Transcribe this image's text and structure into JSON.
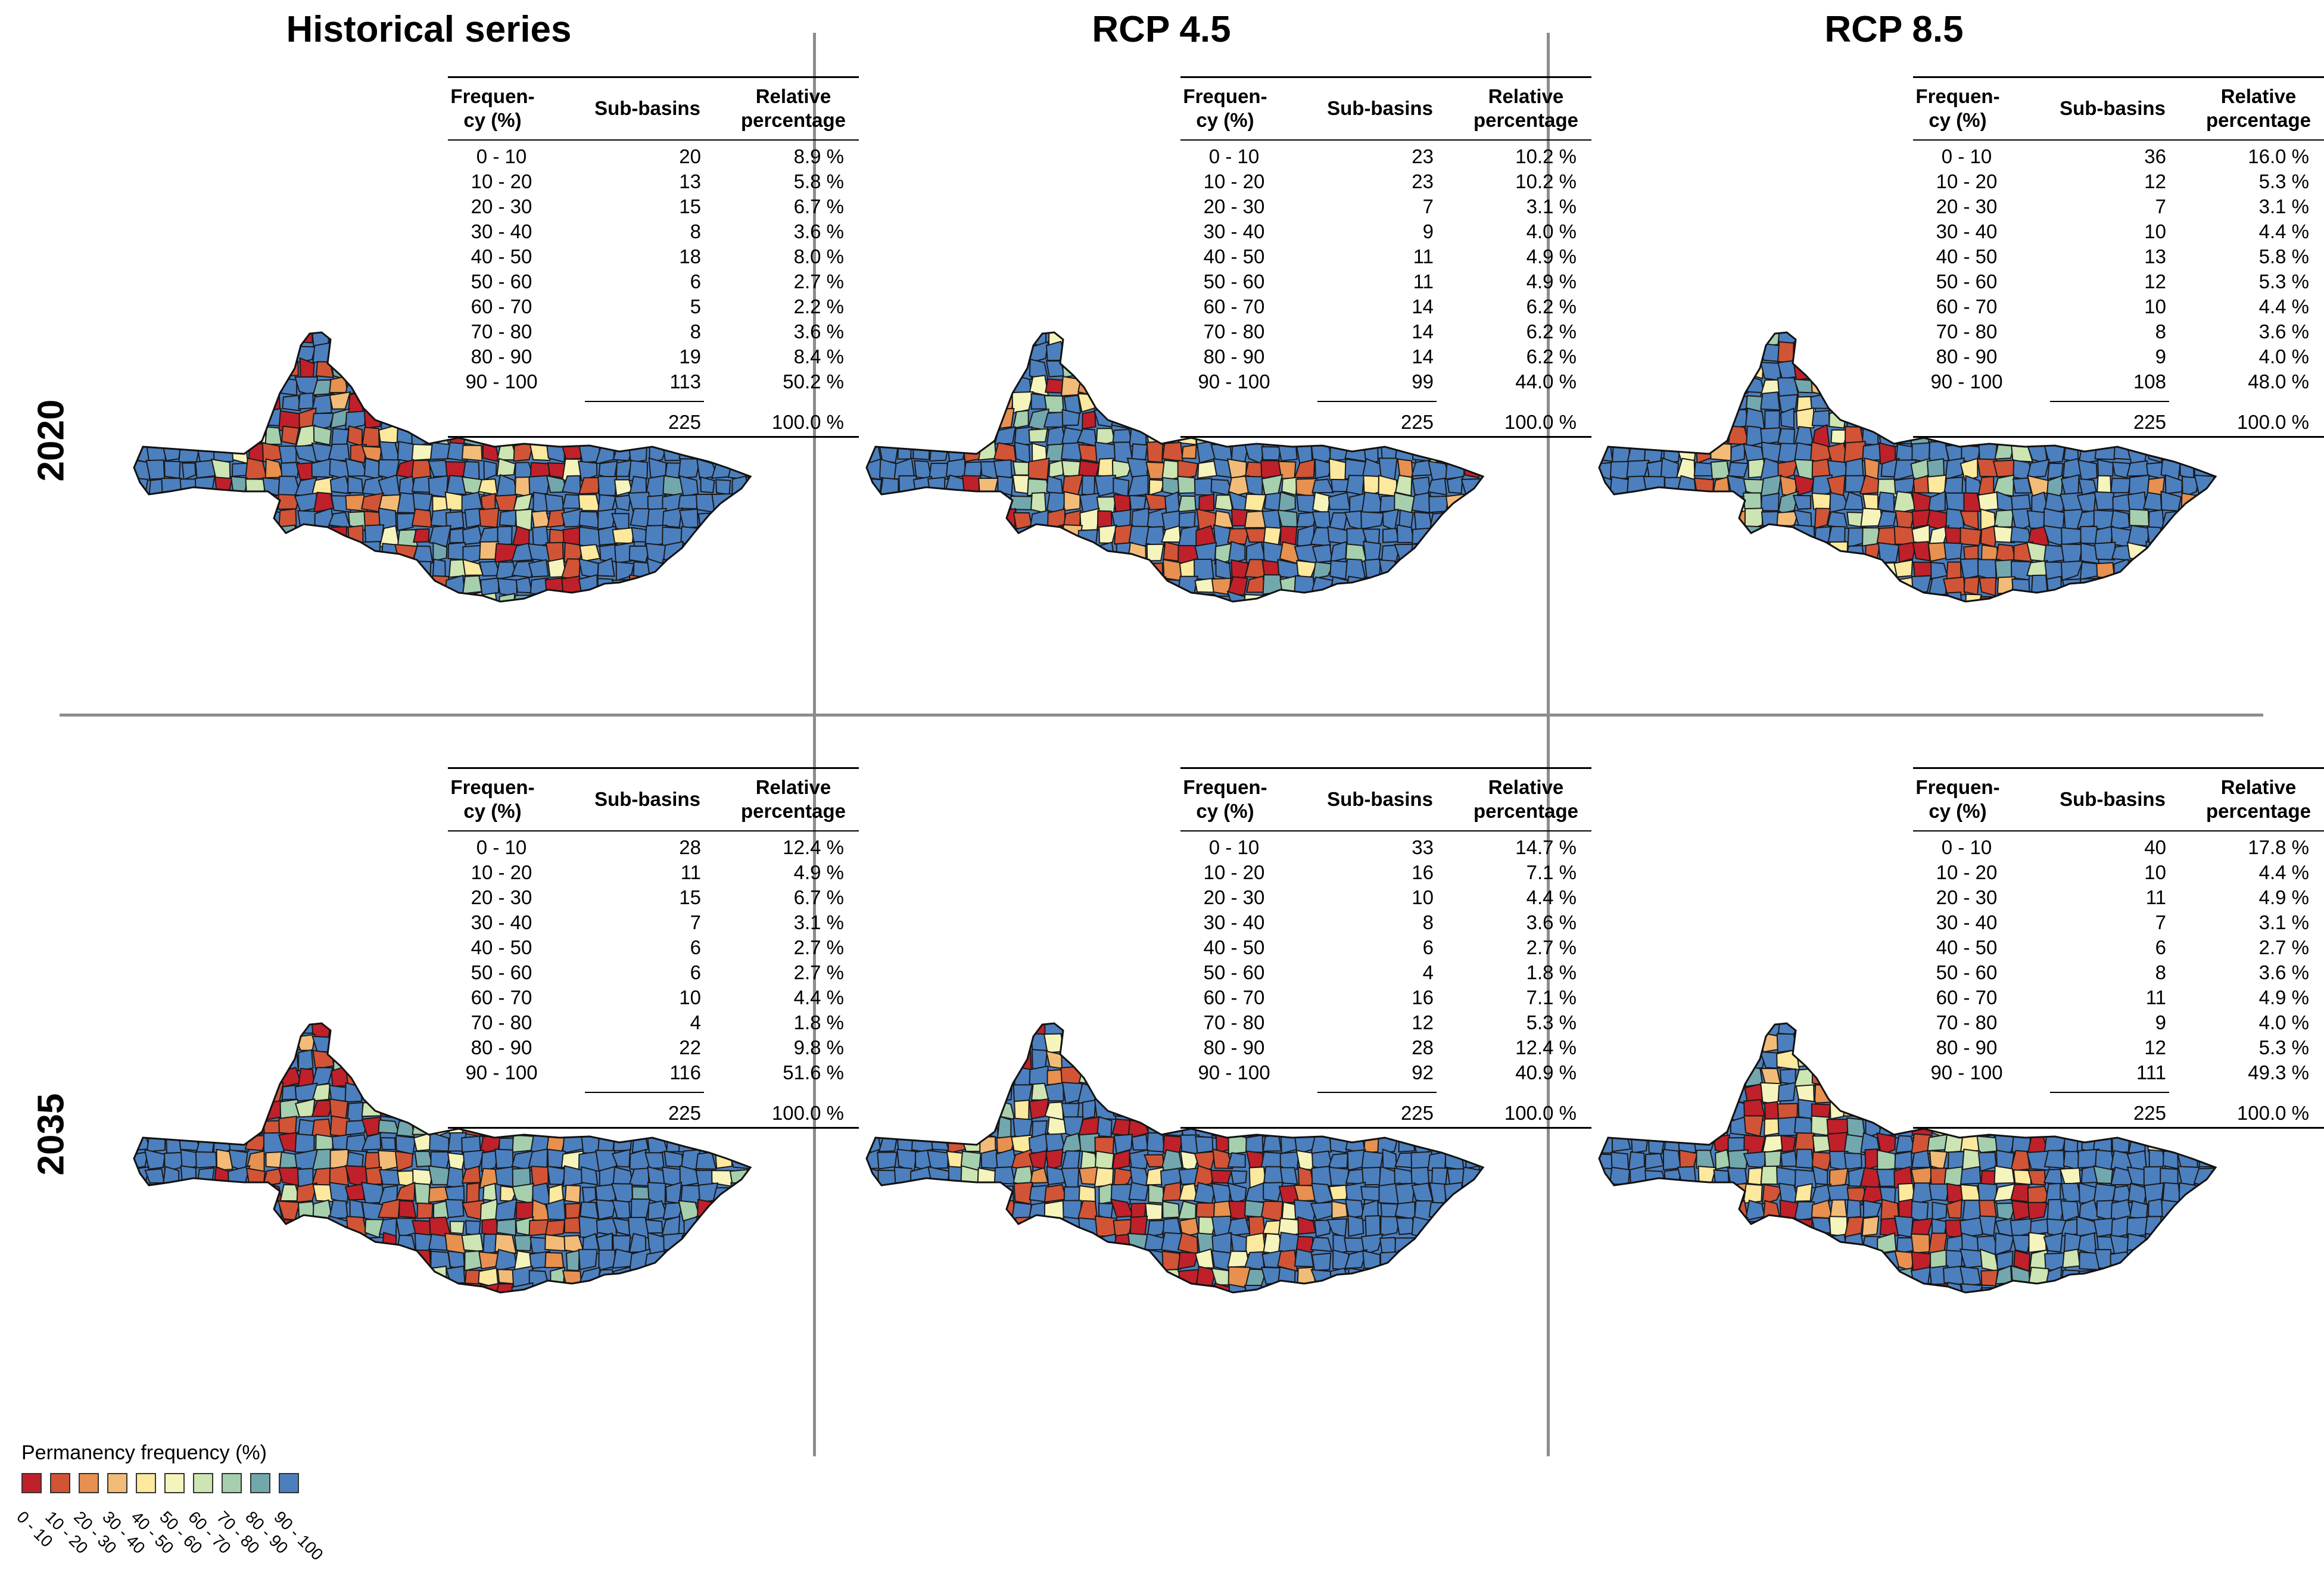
{
  "columns": [
    "Historical series",
    "RCP 4.5",
    "RCP 8.5"
  ],
  "rows": [
    "2020",
    "2035"
  ],
  "table_headers": {
    "frequency": "Frequen-cy (%)",
    "frequency_line1": "Frequen-",
    "frequency_line2": "cy (%)",
    "sub_basins": "Sub-basins",
    "relative_line1": "Relative",
    "relative_line2": "percentage"
  },
  "classes": [
    "0 - 10",
    "10 - 20",
    "20 - 30",
    "30 - 40",
    "40 - 50",
    "50 - 60",
    "60 - 70",
    "70 - 80",
    "80 - 90",
    "90 - 100"
  ],
  "colors": [
    "#c0202a",
    "#d25436",
    "#e8904f",
    "#f2bc78",
    "#fce99e",
    "#f6f4bd",
    "#cde5b2",
    "#a6d0ad",
    "#72a8ad",
    "#4c7fbe"
  ],
  "panels": [
    {
      "id": "hist-2020",
      "counts": [
        "20",
        "13",
        "15",
        "8",
        "18",
        "6",
        "5",
        "8",
        "19",
        "113"
      ],
      "pct": [
        "8.9 %",
        "5.8 %",
        "6.7 %",
        "3.6 %",
        "8.0 %",
        "2.7 %",
        "2.2 %",
        "3.6 %",
        "8.4 %",
        "50.2 %"
      ],
      "total": "225",
      "total_pct": "100.0 %"
    },
    {
      "id": "rcp45-2020",
      "counts": [
        "23",
        "23",
        "7",
        "9",
        "11",
        "11",
        "14",
        "14",
        "14",
        "99"
      ],
      "pct": [
        "10.2 %",
        "10.2 %",
        "3.1 %",
        "4.0 %",
        "4.9 %",
        "4.9 %",
        "6.2 %",
        "6.2 %",
        "6.2 %",
        "44.0 %"
      ],
      "total": "225",
      "total_pct": "100.0 %"
    },
    {
      "id": "rcp85-2020",
      "counts": [
        "36",
        "12",
        "7",
        "10",
        "13",
        "12",
        "10",
        "8",
        "9",
        "108"
      ],
      "pct": [
        "16.0 %",
        "5.3 %",
        "3.1 %",
        "4.4 %",
        "5.8 %",
        "5.3 %",
        "4.4 %",
        "3.6 %",
        "4.0 %",
        "48.0 %"
      ],
      "total": "225",
      "total_pct": "100.0 %"
    },
    {
      "id": "hist-2035",
      "counts": [
        "28",
        "11",
        "15",
        "7",
        "6",
        "6",
        "10",
        "4",
        "22",
        "116"
      ],
      "pct": [
        "12.4 %",
        "4.9 %",
        "6.7 %",
        "3.1 %",
        "2.7 %",
        "2.7 %",
        "4.4 %",
        "1.8 %",
        "9.8 %",
        "51.6 %"
      ],
      "total": "225",
      "total_pct": "100.0 %"
    },
    {
      "id": "rcp45-2035",
      "counts": [
        "33",
        "16",
        "10",
        "8",
        "6",
        "4",
        "16",
        "12",
        "28",
        "92"
      ],
      "pct": [
        "14.7 %",
        "7.1 %",
        "4.4 %",
        "3.6 %",
        "2.7 %",
        "1.8 %",
        "7.1 %",
        "5.3 %",
        "12.4 %",
        "40.9 %"
      ],
      "total": "225",
      "total_pct": "100.0 %"
    },
    {
      "id": "rcp85-2035",
      "counts": [
        "40",
        "10",
        "11",
        "7",
        "6",
        "8",
        "11",
        "9",
        "12",
        "111"
      ],
      "pct": [
        "17.8 %",
        "4.4 %",
        "4.9 %",
        "3.1 %",
        "2.7 %",
        "3.6 %",
        "4.9 %",
        "4.0 %",
        "5.3 %",
        "49.3 %"
      ],
      "total": "225",
      "total_pct": "100.0 %"
    }
  ],
  "legend": {
    "title": "Permanency frequency (%)",
    "labels": [
      "0 - 10",
      "10 - 20",
      "20 - 30",
      "30 - 40",
      "40 - 50",
      "50 - 60",
      "60 - 70",
      "70 - 80",
      "80 - 90",
      "90 - 100"
    ]
  }
}
